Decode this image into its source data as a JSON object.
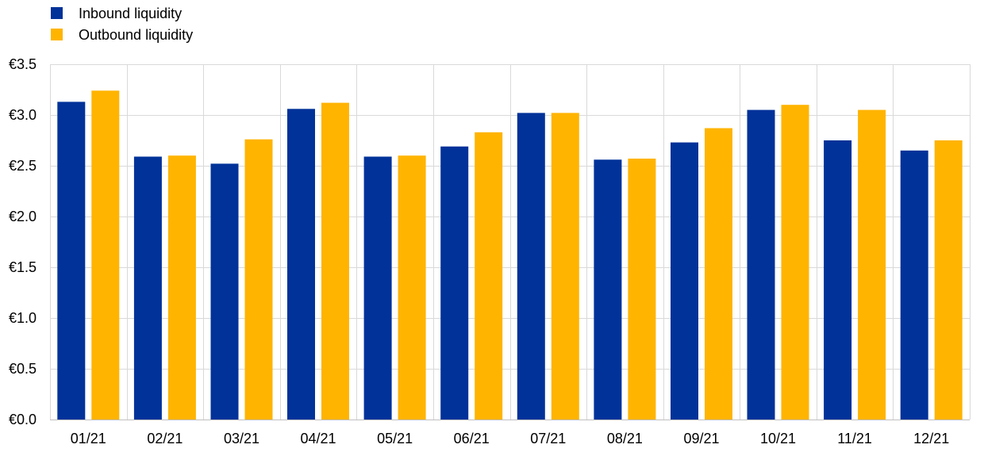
{
  "chart_data": {
    "type": "bar",
    "categories": [
      "01/21",
      "02/21",
      "03/21",
      "04/21",
      "05/21",
      "06/21",
      "07/21",
      "08/21",
      "09/21",
      "10/21",
      "11/21",
      "12/21"
    ],
    "series": [
      {
        "name": "Inbound liquidity",
        "color": "#003299",
        "values": [
          3.13,
          2.59,
          2.52,
          3.06,
          2.59,
          2.69,
          3.02,
          2.56,
          2.73,
          3.05,
          2.75,
          2.65
        ]
      },
      {
        "name": "Outbound liquidity",
        "color": "#FFB400",
        "values": [
          3.24,
          2.6,
          2.76,
          3.12,
          2.6,
          2.83,
          3.02,
          2.57,
          2.87,
          3.1,
          3.05,
          2.75
        ]
      }
    ],
    "ylim": [
      0,
      3.5
    ],
    "yticks": [
      "€0.0",
      "€0.5",
      "€1.0",
      "€1.5",
      "€2.0",
      "€2.5",
      "€3.0",
      "€3.5"
    ],
    "ytick_values": [
      0,
      0.5,
      1.0,
      1.5,
      2.0,
      2.5,
      3.0,
      3.5
    ],
    "grid": true,
    "legend_position": "top-left",
    "title": "",
    "xlabel": "",
    "ylabel": ""
  }
}
